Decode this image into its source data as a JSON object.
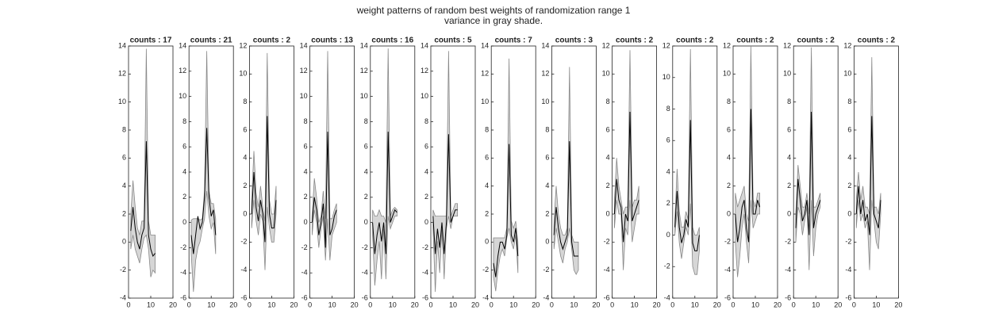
{
  "title": "weight patterns of random best weights of randomization range 1",
  "subtitle": "variance in gray shade.",
  "chart_data": [
    {
      "type": "line",
      "title": "counts : 17",
      "x": [
        1,
        2,
        3,
        4,
        5,
        6,
        7,
        8,
        9,
        10,
        11,
        12
      ],
      "values": [
        0.8,
        2.5,
        1,
        0,
        -0.5,
        0.5,
        1,
        7.2,
        0.5,
        -0.5,
        -1,
        -0.8
      ],
      "band_low": [
        -0.5,
        0.5,
        -0.5,
        -1,
        -1.5,
        -0.5,
        0.3,
        0.5,
        -0.5,
        -2.5,
        -2,
        -2.2
      ],
      "band_high": [
        2,
        4.4,
        2.5,
        1,
        0.5,
        1.5,
        1.5,
        13.8,
        1.5,
        0.5,
        0.5,
        0.5
      ],
      "color": "#000000",
      "band_color": "#d6d6d6",
      "xlim": [
        0,
        20
      ],
      "xticks": [
        0,
        10,
        20
      ],
      "ylim": [
        -4,
        14
      ],
      "yticks": [
        -4,
        -2,
        0,
        2,
        4,
        6,
        8,
        10,
        12,
        14
      ]
    },
    {
      "type": "line",
      "title": "counts : 21",
      "x": [
        1,
        2,
        3,
        4,
        5,
        6,
        7,
        8,
        9,
        10,
        11,
        12
      ],
      "values": [
        -1,
        -2.5,
        -1,
        0.5,
        -0.5,
        0,
        2,
        7.5,
        2,
        0.5,
        1,
        -1
      ],
      "band_low": [
        -2.5,
        -5.5,
        -3,
        -2,
        -1.5,
        -0.5,
        0.3,
        2.5,
        0.5,
        -0.5,
        0,
        -2.5
      ],
      "band_high": [
        0.2,
        0.3,
        0.3,
        0.3,
        0.2,
        0.3,
        2.5,
        13.6,
        2.5,
        1.5,
        1.5,
        0.3
      ],
      "color": "#000000",
      "band_color": "#d6d6d6",
      "xlim": [
        0,
        20
      ],
      "xticks": [
        0,
        10,
        20
      ],
      "ylim": [
        -6,
        14
      ],
      "yticks": [
        -6,
        -4,
        -2,
        0,
        2,
        4,
        6,
        8,
        10,
        12,
        14
      ]
    },
    {
      "type": "line",
      "title": "counts : 2",
      "x": [
        1,
        2,
        3,
        4,
        5,
        6,
        7,
        8,
        9,
        10,
        11,
        12
      ],
      "values": [
        0,
        3,
        0.5,
        -0.5,
        1,
        0,
        -2,
        7,
        0,
        -1,
        -1,
        1
      ],
      "band_low": [
        -1,
        1,
        -0.5,
        -1.5,
        0,
        -0.5,
        -4,
        0.5,
        -1,
        -2,
        -2,
        0
      ],
      "band_high": [
        1,
        4.5,
        1.5,
        0.5,
        2,
        0.5,
        -0.5,
        11.5,
        1,
        0,
        0,
        2
      ],
      "color": "#000000",
      "band_color": "#d6d6d6",
      "xlim": [
        0,
        20
      ],
      "xticks": [
        0,
        10,
        20
      ],
      "ylim": [
        -6,
        12
      ],
      "yticks": [
        -6,
        -4,
        -2,
        0,
        2,
        4,
        6,
        8,
        10,
        12
      ]
    },
    {
      "type": "line",
      "title": "counts : 13",
      "x": [
        1,
        2,
        3,
        4,
        5,
        6,
        7,
        8,
        9,
        10,
        11,
        12
      ],
      "values": [
        0,
        2,
        1,
        -1,
        0,
        1.5,
        -2,
        7.2,
        -1,
        -0.5,
        0.5,
        1
      ],
      "band_low": [
        -1,
        1,
        0,
        -2,
        -0.5,
        0.5,
        -3,
        0.3,
        -3,
        -1,
        -0.5,
        0
      ],
      "band_high": [
        0.5,
        3.5,
        2,
        0,
        0.5,
        2.5,
        0.3,
        13.6,
        0.3,
        0.3,
        1,
        1.5
      ],
      "color": "#000000",
      "band_color": "#d6d6d6",
      "xlim": [
        0,
        20
      ],
      "xticks": [
        0,
        10,
        20
      ],
      "ylim": [
        -6,
        14
      ],
      "yticks": [
        -6,
        -4,
        -2,
        0,
        2,
        4,
        6,
        8,
        10,
        12,
        14
      ]
    },
    {
      "type": "line",
      "title": "counts : 16",
      "x": [
        1,
        2,
        3,
        4,
        5,
        6,
        7,
        8,
        9,
        10,
        11,
        12
      ],
      "values": [
        0,
        -2.5,
        -1,
        0,
        -1.5,
        0,
        -2.5,
        7.2,
        0,
        0.5,
        1,
        0.8
      ],
      "band_low": [
        -1,
        -5,
        -3,
        -1.5,
        -4.5,
        -0.5,
        -4.5,
        0.5,
        -0.5,
        0,
        0.5,
        0.5
      ],
      "band_high": [
        1,
        0.5,
        0.5,
        1,
        0.5,
        0.5,
        0,
        13.8,
        0.5,
        1,
        1.2,
        1
      ],
      "color": "#000000",
      "band_color": "#d6d6d6",
      "xlim": [
        0,
        20
      ],
      "xticks": [
        0,
        10,
        20
      ],
      "ylim": [
        -6,
        14
      ],
      "yticks": [
        -6,
        -4,
        -2,
        0,
        2,
        4,
        6,
        8,
        10,
        12,
        14
      ]
    },
    {
      "type": "line",
      "title": "counts : 5",
      "x": [
        1,
        2,
        3,
        4,
        5,
        6,
        7,
        8,
        9,
        10,
        11,
        12
      ],
      "values": [
        0.5,
        -2.5,
        -0.5,
        -2,
        0,
        -2.5,
        0,
        7,
        0,
        0.5,
        1,
        1
      ],
      "band_low": [
        -0.5,
        -5.5,
        -1.5,
        -4,
        -0.5,
        -4.5,
        -0.5,
        0.5,
        -0.5,
        0.5,
        0.5,
        0.5
      ],
      "band_high": [
        1,
        0.5,
        0.5,
        0.5,
        0.5,
        0.5,
        0.5,
        13.6,
        0.5,
        1,
        1.5,
        1.5
      ],
      "color": "#000000",
      "band_color": "#d6d6d6",
      "xlim": [
        0,
        20
      ],
      "xticks": [
        0,
        10,
        20
      ],
      "ylim": [
        -6,
        14
      ],
      "yticks": [
        -6,
        -4,
        -2,
        0,
        2,
        4,
        6,
        8,
        10,
        12,
        14
      ]
    },
    {
      "type": "line",
      "title": "counts : 7",
      "x": [
        1,
        2,
        3,
        4,
        5,
        6,
        7,
        8,
        9,
        10,
        11,
        12
      ],
      "values": [
        -1.5,
        -2.5,
        -1,
        0,
        0,
        -0.5,
        0.5,
        7,
        0.5,
        0,
        1,
        -1
      ],
      "band_low": [
        -2.5,
        -3.5,
        -2,
        -1,
        -0.5,
        -1,
        0.3,
        1,
        0,
        -0.5,
        0.5,
        -2.2
      ],
      "band_high": [
        0.3,
        0.3,
        0.3,
        0.3,
        0.3,
        0.3,
        1,
        13.1,
        1.5,
        1,
        1.5,
        0
      ],
      "color": "#000000",
      "band_color": "#d6d6d6",
      "xlim": [
        0,
        20
      ],
      "xticks": [
        0,
        10,
        20
      ],
      "ylim": [
        -4,
        14
      ],
      "yticks": [
        -4,
        -2,
        0,
        2,
        4,
        6,
        8,
        10,
        12,
        14
      ]
    },
    {
      "type": "line",
      "title": "counts : 3",
      "x": [
        1,
        2,
        3,
        4,
        5,
        6,
        7,
        8,
        9,
        10,
        11,
        12
      ],
      "values": [
        0.5,
        2.5,
        1,
        0,
        -0.5,
        0,
        0.5,
        7.2,
        0,
        -1,
        -1,
        -1
      ],
      "band_low": [
        -0.5,
        1,
        0,
        -1,
        -1.5,
        -0.5,
        0,
        1,
        -0.5,
        -2,
        -2.3,
        -2
      ],
      "band_high": [
        1.5,
        4,
        2,
        1,
        0.5,
        0.5,
        1,
        12.5,
        0.5,
        0,
        0,
        0
      ],
      "color": "#000000",
      "band_color": "#d6d6d6",
      "xlim": [
        0,
        20
      ],
      "xticks": [
        0,
        10,
        20
      ],
      "ylim": [
        -4,
        14
      ],
      "yticks": [
        -4,
        -2,
        0,
        2,
        4,
        6,
        8,
        10,
        12,
        14
      ]
    },
    {
      "type": "line",
      "title": "counts : 2",
      "x": [
        1,
        2,
        3,
        4,
        5,
        6,
        7,
        8,
        9,
        10,
        11,
        12
      ],
      "values": [
        0,
        2.5,
        1,
        0.5,
        -2,
        0,
        -0.5,
        7.3,
        -0.5,
        0,
        0.5,
        1
      ],
      "band_low": [
        -1,
        1,
        0,
        0,
        -4,
        -1,
        -1.5,
        1,
        -2,
        -1,
        0,
        0
      ],
      "band_high": [
        1,
        4,
        2,
        1,
        0,
        0.5,
        0.5,
        11.7,
        0.5,
        1,
        1,
        2
      ],
      "color": "#000000",
      "band_color": "#d6d6d6",
      "xlim": [
        0,
        20
      ],
      "xticks": [
        0,
        10,
        20
      ],
      "ylim": [
        -6,
        12
      ],
      "yticks": [
        -6,
        -4,
        -2,
        0,
        2,
        4,
        6,
        8,
        10,
        12
      ]
    },
    {
      "type": "line",
      "title": "counts : 2",
      "x": [
        1,
        2,
        3,
        4,
        5,
        6,
        7,
        8,
        9,
        10,
        11,
        12
      ],
      "values": [
        0.5,
        2.8,
        0.5,
        -0.5,
        0,
        1,
        0.5,
        7.3,
        -0.5,
        -1,
        -1,
        0
      ],
      "band_low": [
        0,
        1.5,
        -0.5,
        -1.5,
        -0.5,
        0.5,
        0,
        2,
        -2,
        -2.5,
        -2.5,
        -1
      ],
      "band_high": [
        1,
        4.2,
        1.5,
        0.5,
        0.5,
        1.5,
        1,
        11.8,
        0.5,
        0,
        0,
        0.5
      ],
      "color": "#000000",
      "band_color": "#d6d6d6",
      "xlim": [
        0,
        20
      ],
      "xticks": [
        0,
        10,
        20
      ],
      "ylim": [
        -4,
        12
      ],
      "yticks": [
        -4,
        -2,
        0,
        2,
        4,
        6,
        8,
        10,
        12
      ]
    },
    {
      "type": "line",
      "title": "counts : 2",
      "x": [
        1,
        2,
        3,
        4,
        5,
        6,
        7,
        8,
        9,
        10,
        11,
        12
      ],
      "values": [
        0,
        -2,
        -1,
        0.5,
        1,
        -1,
        -2,
        7.5,
        0,
        0,
        1,
        0.5
      ],
      "band_low": [
        -2,
        -4.5,
        -3,
        -1,
        0,
        -2,
        -3.5,
        1,
        -1,
        -0.5,
        0,
        0
      ],
      "band_high": [
        1.5,
        0.5,
        1,
        1.5,
        2,
        0,
        -0.5,
        12,
        1,
        0.5,
        1.5,
        1.5
      ],
      "color": "#000000",
      "band_color": "#d6d6d6",
      "xlim": [
        0,
        20
      ],
      "xticks": [
        0,
        10,
        20
      ],
      "ylim": [
        -6,
        12
      ],
      "yticks": [
        -6,
        -4,
        -2,
        0,
        2,
        4,
        6,
        8,
        10,
        12
      ]
    },
    {
      "type": "line",
      "title": "counts : 2",
      "x": [
        1,
        2,
        3,
        4,
        5,
        6,
        7,
        8,
        9,
        10,
        11,
        12
      ],
      "values": [
        -1,
        2.5,
        1,
        -0.5,
        0,
        1,
        -1.5,
        7.3,
        -1,
        0,
        0.5,
        1
      ],
      "band_low": [
        -2,
        0.5,
        0,
        -1.5,
        -0.5,
        0.5,
        -4,
        1,
        -3,
        -1,
        0,
        0.5
      ],
      "band_high": [
        0,
        3.5,
        2,
        0.5,
        0.5,
        1.5,
        0,
        11.9,
        0.5,
        0.5,
        1,
        1.5
      ],
      "color": "#000000",
      "band_color": "#d6d6d6",
      "xlim": [
        0,
        20
      ],
      "xticks": [
        0,
        10,
        20
      ],
      "ylim": [
        -6,
        12
      ],
      "yticks": [
        -6,
        -4,
        -2,
        0,
        2,
        4,
        6,
        8,
        10,
        12
      ]
    },
    {
      "type": "line",
      "title": "counts : 2",
      "x": [
        1,
        2,
        3,
        4,
        5,
        6,
        7,
        8,
        9,
        10,
        11,
        12
      ],
      "values": [
        0,
        2,
        0,
        1,
        -0.5,
        0,
        -1.5,
        7,
        0,
        -0.5,
        -1,
        1
      ],
      "band_low": [
        -1,
        1,
        -0.5,
        0,
        -1,
        -0.5,
        -4,
        1,
        -0.5,
        -2,
        -2.5,
        0
      ],
      "band_high": [
        1,
        3,
        1,
        2,
        0.5,
        0.5,
        0,
        11.2,
        0.5,
        0.5,
        0,
        1.5
      ],
      "color": "#000000",
      "band_color": "#d6d6d6",
      "xlim": [
        0,
        20
      ],
      "xticks": [
        0,
        10,
        20
      ],
      "ylim": [
        -6,
        12
      ],
      "yticks": [
        -6,
        -4,
        -2,
        0,
        2,
        4,
        6,
        8,
        10,
        12
      ]
    }
  ]
}
